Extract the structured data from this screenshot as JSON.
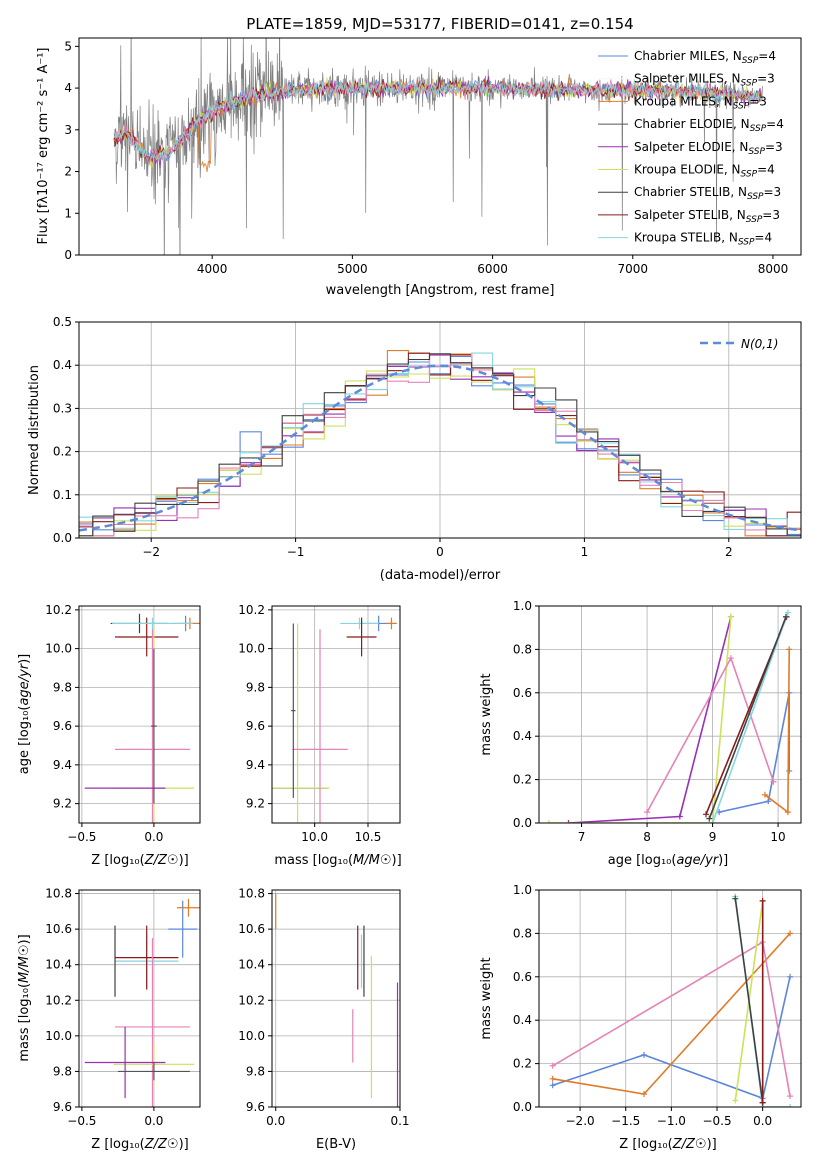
{
  "title": "PLATE=1859, MJD=53177, FIBERID=0141, z=0.154",
  "colors": {
    "Chabrier MILES": "#5b86db",
    "Salpeter MILES": "#f7f7f7",
    "Kroupa MILES": "#e07b28",
    "Chabrier ELODIE": "#555555",
    "Salpeter ELODIE": "#9b2fb5",
    "Kroupa ELODIE": "#cbe35a",
    "Chabrier STELIB": "#404040",
    "Salpeter STELIB": "#8b1a1a",
    "Kroupa STELIB": "#86d6e0",
    "Kroupa2": "#e583b6",
    "Salpeter2": "#7b3a1f",
    "Normal": "#5b8bd9",
    "Data": "#808080"
  },
  "chart_data": [
    {
      "type": "line",
      "name": "spectrum",
      "xlabel": "wavelength [Angstrom, rest frame]",
      "ylabel": "Flux [f_λ 10^-17 erg cm^-2 s^-1 A^-1]",
      "xlim": [
        3050,
        8200
      ],
      "ylim": [
        0,
        5.2
      ],
      "xticks": [
        4000,
        5000,
        6000,
        7000,
        8000
      ],
      "yticks": [
        0,
        1,
        2,
        3,
        4,
        5
      ],
      "legend_position": "right",
      "legend": [
        {
          "model": "Chabrier MILES",
          "n": "4"
        },
        {
          "model": "Salpeter MILES",
          "n": "3"
        },
        {
          "model": "Kroupa MILES",
          "n": "3"
        },
        {
          "model": "Chabrier ELODIE",
          "n": "4"
        },
        {
          "model": "Salpeter ELODIE",
          "n": "3"
        },
        {
          "model": "Kroupa ELODIE",
          "n": "4"
        },
        {
          "model": "Chabrier STELIB",
          "n": "3"
        },
        {
          "model": "Salpeter STELIB",
          "n": "3"
        },
        {
          "model": "Kroupa STELIB",
          "n": "4"
        }
      ],
      "continuum": [
        [
          3300,
          2.8
        ],
        [
          3400,
          2.9
        ],
        [
          3550,
          2.3
        ],
        [
          3700,
          2.5
        ],
        [
          3900,
          3.2
        ],
        [
          4100,
          3.6
        ],
        [
          4300,
          3.8
        ],
        [
          4600,
          3.95
        ],
        [
          5000,
          4.0
        ],
        [
          5500,
          4.0
        ],
        [
          6000,
          4.0
        ],
        [
          6500,
          3.95
        ],
        [
          7000,
          3.95
        ],
        [
          7500,
          3.9
        ],
        [
          7900,
          3.8
        ]
      ]
    },
    {
      "type": "line",
      "name": "residuals",
      "xlabel": "(data-model)/error",
      "ylabel": "Normed distribution",
      "xlim": [
        -2.5,
        2.5
      ],
      "ylim": [
        0,
        0.5
      ],
      "xticks": [
        -2,
        -1,
        0,
        1,
        2
      ],
      "yticks": [
        0.0,
        0.1,
        0.2,
        0.3,
        0.4,
        0.5
      ],
      "legend_label": "N(0,1)",
      "legend_position": "top-right",
      "grid": true
    },
    {
      "type": "scatter",
      "name": "age-vs-Z",
      "xlabel": "Z [log10(Z/Z☉)]",
      "ylabel": "age [log10(age/yr)]",
      "xlim": [
        -0.52,
        0.32
      ],
      "ylim": [
        9.1,
        10.22
      ],
      "xticks": [
        -0.5,
        0.0,
        0.5
      ],
      "yticks": [
        9.2,
        9.4,
        9.6,
        9.8,
        10.0,
        10.2
      ],
      "grid": true,
      "points": [
        {
          "model": "Chabrier MILES",
          "x": 0.22,
          "xerr": 0.1,
          "y": 10.13,
          "yerr": 0.04
        },
        {
          "model": "Kroupa MILES",
          "x": 0.25,
          "xerr": 0.08,
          "y": 10.13,
          "yerr": 0.03
        },
        {
          "model": "Chabrier STELIB",
          "x": -0.1,
          "xerr": 0.2,
          "y": 10.13,
          "yerr": 0.05
        },
        {
          "model": "Salpeter STELIB",
          "x": -0.05,
          "xerr": 0.22,
          "y": 10.06,
          "yerr": 0.1
        },
        {
          "model": "Kroupa STELIB",
          "x": -0.01,
          "xerr": 0.28,
          "y": 10.13,
          "yerr": 0.03
        },
        {
          "model": "Kroupa2",
          "x": -0.01,
          "xerr": 0.26,
          "y": 9.48,
          "yerr": 0.62
        },
        {
          "model": "Kroupa ELODIE",
          "x": 0.0,
          "xerr": 0.28,
          "y": 9.28,
          "yerr": 0.82
        },
        {
          "model": "Salpeter ELODIE",
          "x": -0.2,
          "xerr": 0.28,
          "y": 9.28,
          "yerr": 0.0
        },
        {
          "model": "Chabrier ELODIE",
          "x": 0.0,
          "xerr": 0.02,
          "y": 9.6,
          "yerr": 0.4
        }
      ]
    },
    {
      "type": "scatter",
      "name": "age-vs-mass",
      "xlabel": "mass [log10(M/M☉)]",
      "ylabel": "",
      "xlim": [
        9.6,
        10.8
      ],
      "ylim": [
        9.1,
        10.22
      ],
      "xticks": [
        10.0,
        10.5
      ],
      "yticks": [
        9.2,
        9.4,
        9.6,
        9.8,
        10.0,
        10.2
      ],
      "grid": true,
      "points": [
        {
          "model": "Chabrier MILES",
          "x": 10.6,
          "xerr": 0.16,
          "y": 10.13,
          "yerr": 0.04
        },
        {
          "model": "Kroupa MILES",
          "x": 10.72,
          "xerr": 0.05,
          "y": 10.13,
          "yerr": 0.03
        },
        {
          "model": "Kroupa STELIB",
          "x": 10.42,
          "xerr": 0.18,
          "y": 10.13,
          "yerr": 0.03
        },
        {
          "model": "Salpeter STELIB",
          "x": 10.44,
          "xerr": 0.14,
          "y": 10.06,
          "yerr": 0.1
        },
        {
          "model": "Salpeter ELODIE",
          "x": 9.85,
          "xerr": 0.27,
          "y": 9.28,
          "yerr": 0.0
        },
        {
          "model": "Kroupa ELODIE",
          "x": 9.84,
          "xerr": 0.3,
          "y": 9.28,
          "yerr": 0.85
        },
        {
          "model": "Kroupa2",
          "x": 10.05,
          "xerr": 0.26,
          "y": 9.48,
          "yerr": 0.62
        },
        {
          "model": "Chabrier ELODIE",
          "x": 9.8,
          "xerr": 0.02,
          "y": 9.68,
          "yerr": 0.45
        }
      ]
    },
    {
      "type": "line",
      "name": "mass-weight-vs-age",
      "xlabel": "age [log10(age/yr)]",
      "ylabel": "mass weight",
      "xlim": [
        6.35,
        10.35
      ],
      "ylim": [
        0,
        1
      ],
      "xticks": [
        7,
        8,
        9,
        10
      ],
      "yticks": [
        0.0,
        0.2,
        0.4,
        0.6,
        0.8,
        1.0
      ],
      "grid": true,
      "series": [
        {
          "model": "Chabrier MILES",
          "x": [
            9.1,
            9.85,
            10.17,
            10.17
          ],
          "y": [
            0.05,
            0.1,
            0.6,
            0.24
          ]
        },
        {
          "model": "Kroupa MILES",
          "x": [
            9.8,
            10.15,
            10.17
          ],
          "y": [
            0.13,
            0.05,
            0.8
          ]
        },
        {
          "model": "Salpeter ELODIE",
          "x": [
            6.8,
            8.5,
            9.28
          ],
          "y": [
            0.0,
            0.03,
            0.95
          ]
        },
        {
          "model": "Kroupa ELODIE",
          "x": [
            6.5,
            9.0,
            9.28
          ],
          "y": [
            0.0,
            0.0,
            0.95
          ]
        },
        {
          "model": "Kroupa2",
          "x": [
            8.0,
            9.28,
            9.93
          ],
          "y": [
            0.05,
            0.76,
            0.19
          ]
        },
        {
          "model": "Salpeter STELIB",
          "x": [
            8.9,
            10.13
          ],
          "y": [
            0.04,
            0.95
          ]
        },
        {
          "model": "Kroupa STELIB",
          "x": [
            9.0,
            10.15
          ],
          "y": [
            0.0,
            0.97
          ]
        },
        {
          "model": "Chabrier STELIB",
          "x": [
            8.95,
            10.12
          ],
          "y": [
            0.02,
            0.95
          ]
        }
      ]
    },
    {
      "type": "scatter",
      "name": "mass-vs-Z",
      "xlabel": "Z [log10(Z/Z☉)]",
      "ylabel": "mass [log10(M/M☉)]",
      "xlim": [
        -0.52,
        0.32
      ],
      "ylim": [
        9.6,
        10.82
      ],
      "xticks": [
        -0.5,
        0.0,
        0.5
      ],
      "yticks": [
        9.6,
        9.8,
        10.0,
        10.2,
        10.4,
        10.6,
        10.8
      ],
      "grid": true,
      "points": [
        {
          "model": "Chabrier MILES",
          "x": 0.2,
          "xerr": 0.1,
          "y": 10.6,
          "yerr": 0.16
        },
        {
          "model": "Kroupa MILES",
          "x": 0.24,
          "xerr": 0.08,
          "y": 10.72,
          "yerr": 0.05
        },
        {
          "model": "Kroupa STELIB",
          "x": -0.05,
          "xerr": 0.22,
          "y": 10.42,
          "yerr": 0.15
        },
        {
          "model": "Salpeter STELIB",
          "x": -0.05,
          "xerr": 0.22,
          "y": 10.44,
          "yerr": 0.18
        },
        {
          "model": "Chabrier STELIB",
          "x": -0.27,
          "xerr": 0.0,
          "y": 10.42,
          "yerr": 0.2
        },
        {
          "model": "Kroupa2",
          "x": -0.01,
          "xerr": 0.26,
          "y": 10.05,
          "yerr": 0.5
        },
        {
          "model": "Kroupa ELODIE",
          "x": 0.0,
          "xerr": 0.28,
          "y": 9.84,
          "yerr": 0.12
        },
        {
          "model": "Salpeter ELODIE",
          "x": -0.2,
          "xerr": 0.28,
          "y": 9.85,
          "yerr": 0.2
        },
        {
          "model": "Chabrier ELODIE",
          "x": 0.0,
          "xerr": 0.25,
          "y": 9.8,
          "yerr": 0.05
        }
      ]
    },
    {
      "type": "scatter",
      "name": "mass-vs-ebv",
      "xlabel": "E(B-V)",
      "ylabel": "",
      "xlim": [
        -0.003,
        0.1
      ],
      "ylim": [
        9.6,
        10.82
      ],
      "xticks": [
        0.0,
        0.1
      ],
      "yticks": [
        9.6,
        9.8,
        10.0,
        10.2,
        10.4,
        10.6,
        10.8
      ],
      "grid": true,
      "points": [
        {
          "model": "Kroupa MILES",
          "x": 0.0,
          "y": 10.7,
          "yerr": 0.1
        },
        {
          "model": "Kroupa2",
          "x": 0.062,
          "y": 10.0,
          "yerr": 0.15
        },
        {
          "model": "Salpeter STELIB",
          "x": 0.066,
          "y": 10.44,
          "yerr": 0.18
        },
        {
          "model": "Kroupa STELIB",
          "x": 0.069,
          "y": 10.42,
          "yerr": 0.15
        },
        {
          "model": "Chabrier STELIB",
          "x": 0.071,
          "y": 10.42,
          "yerr": 0.2
        },
        {
          "model": "Kroupa ELODIE",
          "x": 0.077,
          "y": 10.05,
          "yerr": 0.4
        },
        {
          "model": "Salpeter ELODIE",
          "x": 0.098,
          "y": 9.95,
          "yerr": 0.35
        }
      ]
    },
    {
      "type": "line",
      "name": "mass-weight-vs-Z",
      "xlabel": "Z [log10(Z/Z☉)]",
      "ylabel": "mass weight",
      "xlim": [
        -2.45,
        0.42
      ],
      "ylim": [
        0,
        1
      ],
      "xticks": [
        -2.0,
        -1.5,
        -1.0,
        -0.5,
        0.0
      ],
      "yticks": [
        0.0,
        0.2,
        0.4,
        0.6,
        0.8,
        1.0
      ],
      "grid": true,
      "series": [
        {
          "model": "Chabrier MILES",
          "x": [
            -2.3,
            -1.3,
            0.0,
            0.3
          ],
          "y": [
            0.1,
            0.24,
            0.04,
            0.6
          ]
        },
        {
          "model": "Kroupa MILES",
          "x": [
            -2.3,
            -1.3,
            0.3
          ],
          "y": [
            0.13,
            0.06,
            0.8
          ]
        },
        {
          "model": "Kroupa2",
          "x": [
            -2.3,
            0.0,
            0.3
          ],
          "y": [
            0.19,
            0.76,
            0.05
          ]
        },
        {
          "model": "Kroupa ELODIE",
          "x": [
            -0.3,
            0.0,
            0.0
          ],
          "y": [
            0.03,
            0.95,
            0.0
          ]
        },
        {
          "model": "Kroupa STELIB",
          "x": [
            -0.3,
            0.0,
            0.3
          ],
          "y": [
            0.97,
            0.0,
            0.0
          ]
        },
        {
          "model": "Chabrier STELIB",
          "x": [
            -0.3,
            0.0
          ],
          "y": [
            0.96,
            0.02
          ]
        },
        {
          "model": "Salpeter STELIB",
          "x": [
            0.0,
            0.0
          ],
          "y": [
            0.95,
            0.02
          ]
        }
      ]
    }
  ]
}
